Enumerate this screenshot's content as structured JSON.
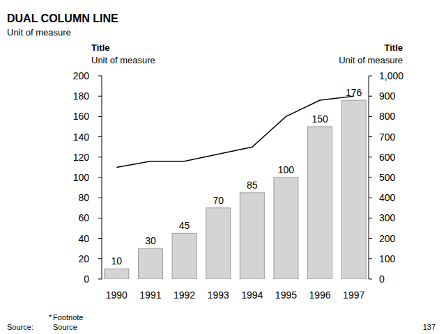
{
  "chart_data": {
    "type": "bar",
    "title": "DUAL COLUMN LINE",
    "subtitle": "Unit of measure",
    "ylabel": "Title",
    "ylabel_unit": "Unit of measure",
    "y2label": "Title",
    "y2label_unit": "Unit of measure",
    "categories": [
      "1990",
      "1991",
      "1992",
      "1993",
      "1994",
      "1995",
      "1996",
      "1997"
    ],
    "series": [
      {
        "type": "bar",
        "color": "#d4d4d4",
        "data_labels": true,
        "values": [
          10,
          30,
          45,
          70,
          85,
          100,
          150,
          176
        ]
      },
      {
        "type": "line",
        "axis": "y2",
        "color": "#000000",
        "values": [
          550,
          580,
          580,
          615,
          650,
          800,
          880,
          900
        ]
      }
    ],
    "ylim": [
      0,
      200
    ],
    "yticks": [
      0,
      20,
      40,
      60,
      80,
      100,
      120,
      140,
      160,
      180,
      200
    ],
    "y2lim": [
      0,
      1000
    ],
    "y2ticks": [
      0,
      100,
      200,
      300,
      400,
      500,
      600,
      700,
      800,
      900,
      {
        "value": 1000,
        "label": "1,000"
      }
    ],
    "grid": false
  },
  "page": {
    "footnote_mark": "*",
    "footnote": "Footnote",
    "source_label": "Source:",
    "source": "Source",
    "page_number": 137
  }
}
